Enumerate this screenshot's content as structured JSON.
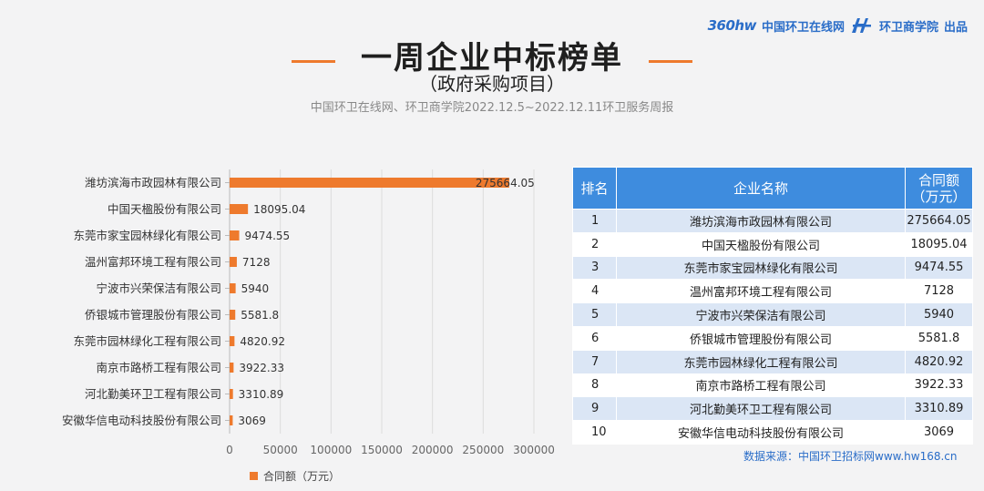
{
  "header": {
    "brand_logo_text": "360hw",
    "brand1": "中国环卫在线网",
    "brand2": "环卫商学院",
    "brand_suffix": "出品",
    "title": "一周企业中标榜单",
    "subtitle": "（政府采购项目）",
    "source_line": "中国环卫在线网、环卫商学院2022.12.5~2022.12.11环卫服务周报",
    "accent_color": "#ee7a2d",
    "brand_color": "#2a6dc8"
  },
  "chart_data": {
    "type": "bar",
    "orientation": "horizontal",
    "categories": [
      "潍坊滨海市政园林有限公司",
      "中国天楹股份有限公司",
      "东莞市家宝园林绿化有限公司",
      "温州富邦环境工程有限公司",
      "宁波市兴荣保洁有限公司",
      "侨银城市管理股份有限公司",
      "东莞市园林绿化工程有限公司",
      "南京市路桥工程有限公司",
      "河北勤美环卫工程有限公司",
      "安徽华信电动科技股份有限公司"
    ],
    "series": [
      {
        "name": "合同额（万元）",
        "values": [
          275664.05,
          18095.04,
          9474.55,
          7128,
          5940,
          5581.8,
          4820.92,
          3922.33,
          3310.89,
          3069
        ],
        "value_labels": [
          "275664.05",
          "18095.04",
          "9474.55",
          "7128",
          "5940",
          "5581.8",
          "4820.92",
          "3922.33",
          "3310.89",
          "3069"
        ],
        "color": "#ee7a2d"
      }
    ],
    "x_ticks": [
      "0",
      "50000",
      "100000",
      "150000",
      "200000",
      "250000",
      "300000"
    ],
    "xlim": [
      0,
      300000
    ],
    "grid": "vertical",
    "legend": "bottom"
  },
  "table": {
    "headers": [
      "排名",
      "企业名称",
      "合同额（万元）"
    ],
    "rows": [
      [
        "1",
        "潍坊滨海市政园林有限公司",
        "275664.05"
      ],
      [
        "2",
        "中国天楹股份有限公司",
        "18095.04"
      ],
      [
        "3",
        "东莞市家宝园林绿化有限公司",
        "9474.55"
      ],
      [
        "4",
        "温州富邦环境工程有限公司",
        "7128"
      ],
      [
        "5",
        "宁波市兴荣保洁有限公司",
        "5940"
      ],
      [
        "6",
        "侨银城市管理股份有限公司",
        "5581.8"
      ],
      [
        "7",
        "东莞市园林绿化工程有限公司",
        "4820.92"
      ],
      [
        "8",
        "南京市路桥工程有限公司",
        "3922.33"
      ],
      [
        "9",
        "河北勤美环卫工程有限公司",
        "3310.89"
      ],
      [
        "10",
        "安徽华信电动科技股份有限公司",
        "3069"
      ]
    ],
    "header_color": "#3e8cde",
    "stripe_color": "#dbe6f5"
  },
  "footer": {
    "data_source": "数据来源：中国环卫招标网www.hw168.cn"
  }
}
